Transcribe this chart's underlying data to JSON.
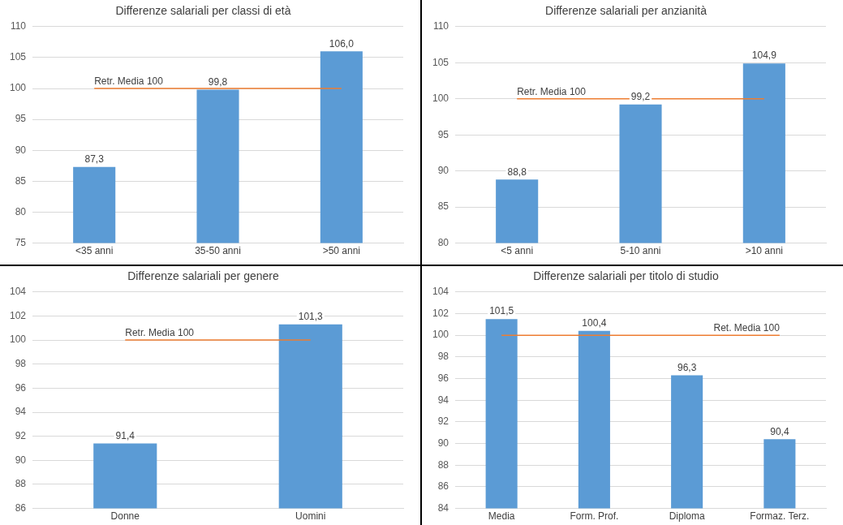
{
  "chart_data": [
    {
      "type": "bar",
      "title": "Differenze salariali per classi di età",
      "categories": [
        "<35 anni",
        "35-50 anni",
        ">50 anni"
      ],
      "values": [
        87.3,
        99.8,
        106.0
      ],
      "value_labels": [
        "87,3",
        "99,8",
        "106,0"
      ],
      "color": "#5b9bd5",
      "ylim": [
        75,
        110
      ],
      "yticks": [
        75,
        80,
        85,
        90,
        95,
        100,
        105,
        110
      ],
      "grid": "y",
      "ref_lines": [
        {
          "axis": "y",
          "value": 100,
          "label": "Retr. Media 100",
          "color": "#ed7d31"
        }
      ]
    },
    {
      "type": "bar",
      "title": "Differenze salariali per anzianità",
      "categories": [
        "<5 anni",
        "5-10 anni",
        ">10 anni"
      ],
      "values": [
        88.8,
        99.2,
        104.9
      ],
      "value_labels": [
        "88,8",
        "99,2",
        "104,9"
      ],
      "color": "#5b9bd5",
      "ylim": [
        80,
        110
      ],
      "yticks": [
        80,
        85,
        90,
        95,
        100,
        105,
        110
      ],
      "grid": "y",
      "ref_lines": [
        {
          "axis": "y",
          "value": 100,
          "label": "Retr. Media 100",
          "color": "#ed7d31"
        }
      ]
    },
    {
      "type": "bar",
      "title": "Differenze salariali per genere",
      "categories": [
        "Donne",
        "Uomini"
      ],
      "values": [
        91.4,
        101.3
      ],
      "value_labels": [
        "91,4",
        "101,3"
      ],
      "color": "#5b9bd5",
      "ylim": [
        86,
        104
      ],
      "yticks": [
        86,
        88,
        90,
        92,
        94,
        96,
        98,
        100,
        102,
        104
      ],
      "grid": "y",
      "ref_lines": [
        {
          "axis": "y",
          "value": 100,
          "label": "Retr. Media 100",
          "color": "#ed7d31"
        }
      ]
    },
    {
      "type": "bar",
      "title": "Differenze salariali per titolo di studio",
      "categories": [
        "Media",
        "Form. Prof.",
        "Diploma",
        "Formaz. Terz."
      ],
      "values": [
        101.5,
        100.4,
        96.3,
        90.4
      ],
      "value_labels": [
        "101,5",
        "100,4",
        "96,3",
        "90,4"
      ],
      "color": "#5b9bd5",
      "ylim": [
        84,
        104
      ],
      "yticks": [
        84,
        86,
        88,
        90,
        92,
        94,
        96,
        98,
        100,
        102,
        104
      ],
      "grid": "y",
      "ref_lines": [
        {
          "axis": "y",
          "value": 100,
          "label": "Ret. Media 100",
          "color": "#ed7d31"
        }
      ]
    }
  ]
}
